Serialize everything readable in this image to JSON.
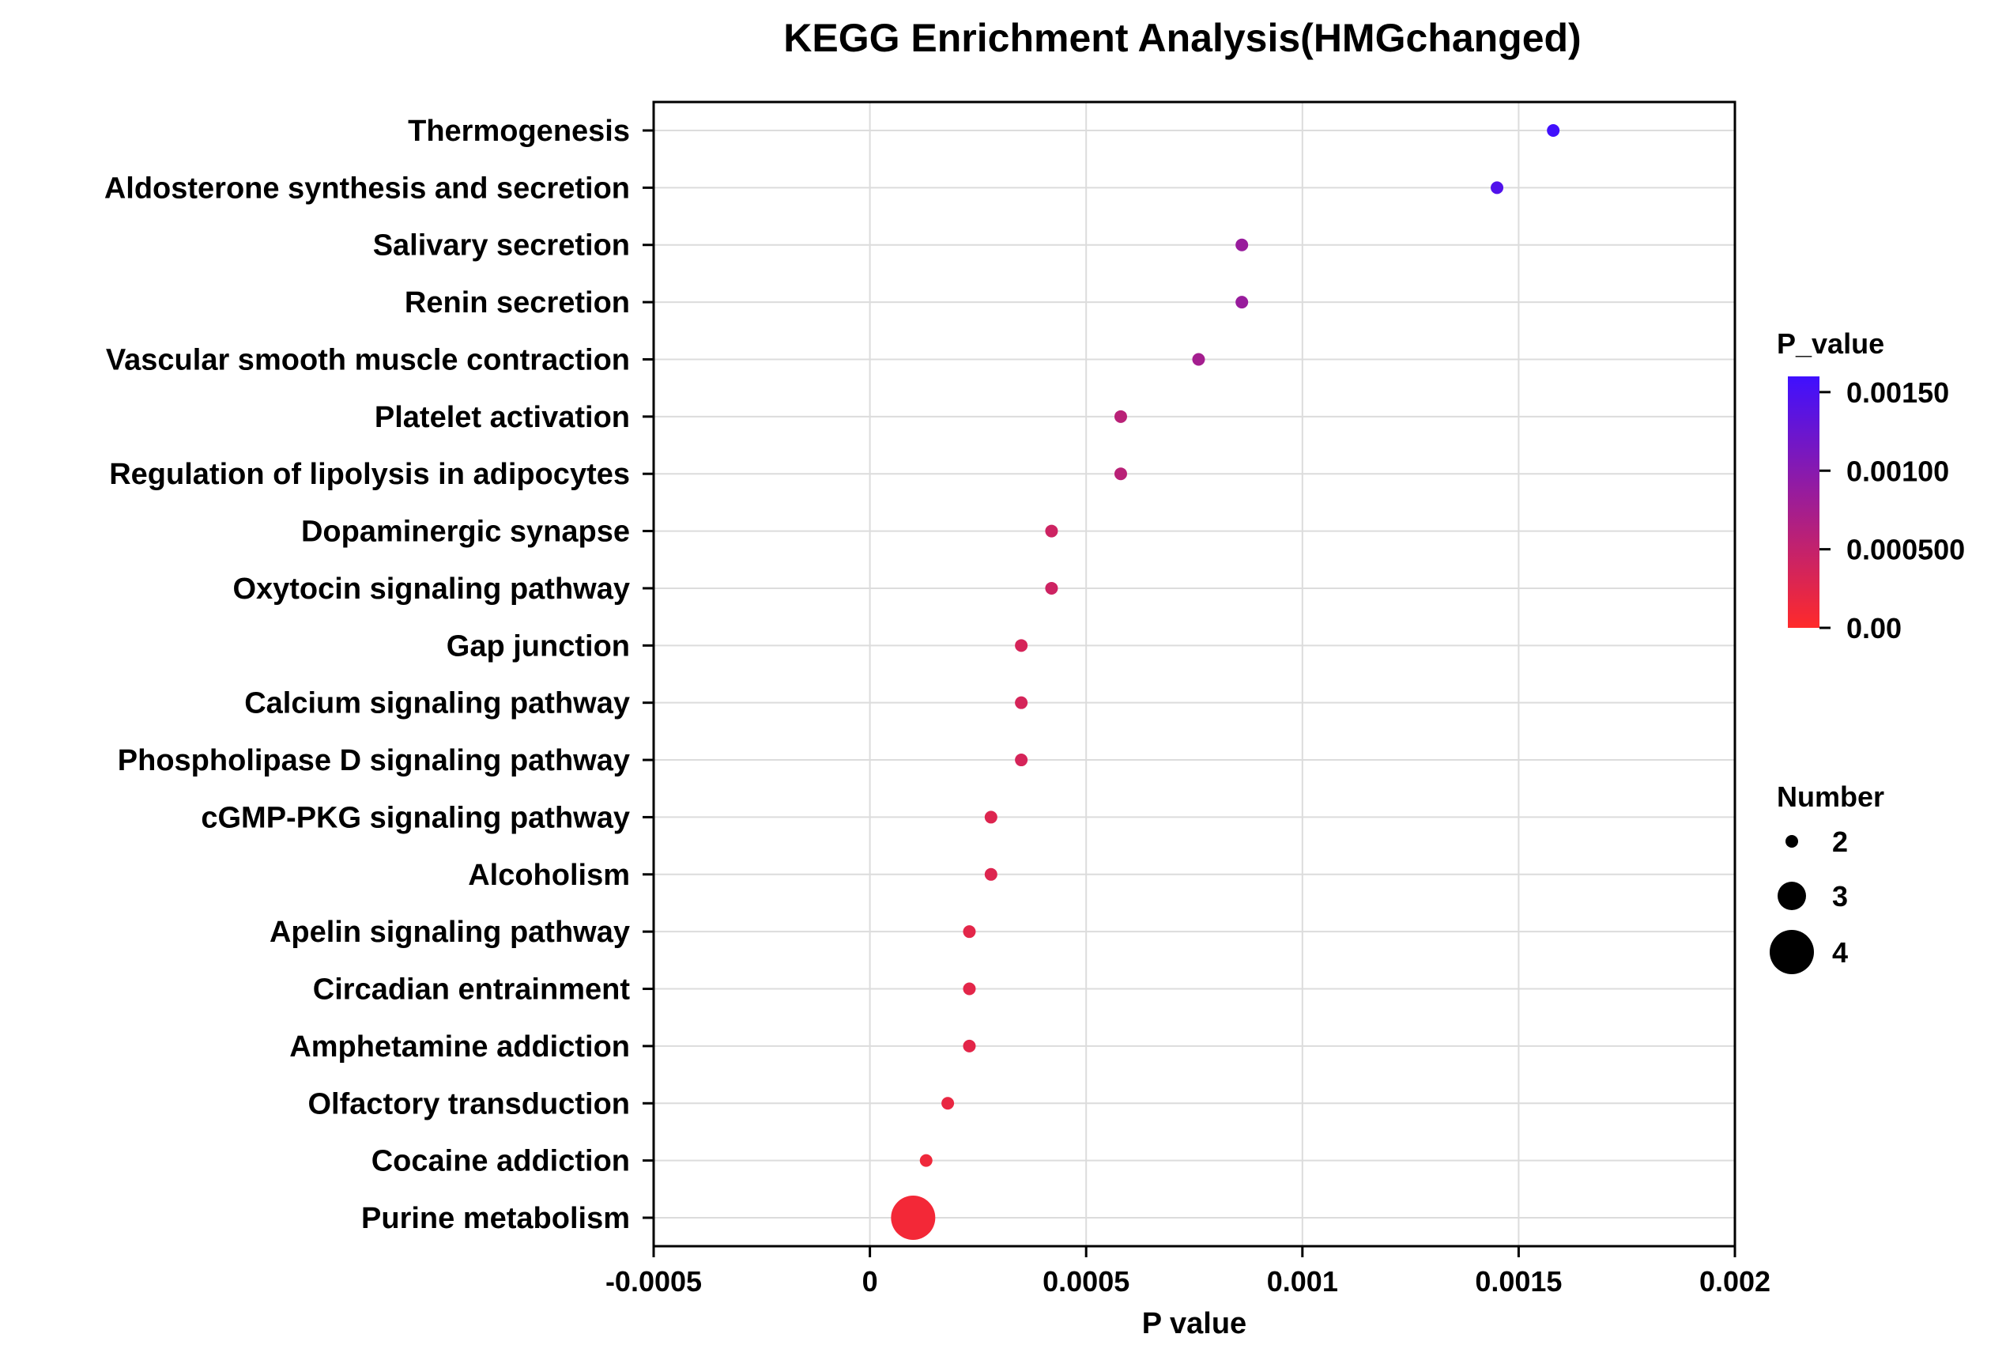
{
  "chart_data": {
    "type": "scatter",
    "title": "KEGG Enrichment Analysis(HMGchanged)",
    "xlabel": "P value",
    "ylabel": "",
    "xlim": [
      -0.0005,
      0.002
    ],
    "x_ticks": [
      "-0.0005",
      "0",
      "0.0005",
      "0.001",
      "0.0015",
      "0.002"
    ],
    "x_tick_values": [
      -0.0005,
      0,
      0.0005,
      0.001,
      0.0015,
      0.002
    ],
    "grid": true,
    "categories": [
      "Thermogenesis",
      "Aldosterone synthesis and secretion",
      "Salivary secretion",
      "Renin secretion",
      "Vascular smooth muscle contraction",
      "Platelet activation",
      "Regulation of lipolysis in adipocytes",
      "Dopaminergic synapse",
      "Oxytocin signaling pathway",
      "Gap junction",
      "Calcium signaling pathway",
      "Phospholipase D signaling pathway",
      "cGMP-PKG signaling pathway",
      "Alcoholism",
      "Apelin signaling pathway",
      "Circadian entrainment",
      "Amphetamine addiction",
      "Olfactory transduction",
      "Cocaine addiction",
      "Purine metabolism"
    ],
    "p_values": [
      0.00158,
      0.00145,
      0.00086,
      0.00086,
      0.00076,
      0.00058,
      0.00058,
      0.00042,
      0.00042,
      0.00035,
      0.00035,
      0.00035,
      0.00028,
      0.00028,
      0.00023,
      0.00023,
      0.00023,
      0.00018,
      0.00013,
      0.0001
    ],
    "numbers": [
      2,
      2,
      2,
      2,
      2,
      2,
      2,
      2,
      2,
      2,
      2,
      2,
      2,
      2,
      2,
      2,
      2,
      2,
      2,
      4
    ],
    "color_legend": {
      "title": "P_value",
      "min": 0,
      "max": 0.0016,
      "low_color": "#ff2a2a",
      "high_color": "#3f10ff",
      "tick_labels": [
        "0.00150",
        "0.00100",
        "0.000500",
        "0.00"
      ],
      "tick_values": [
        0.0015,
        0.001,
        0.0005,
        0
      ]
    },
    "size_legend": {
      "title": "Number",
      "labels": [
        "2",
        "3",
        "4"
      ],
      "values": [
        2,
        3,
        4
      ],
      "marker_color": "#000000"
    }
  }
}
